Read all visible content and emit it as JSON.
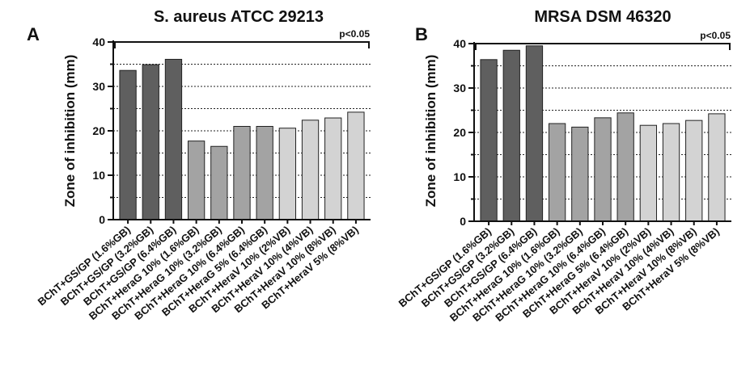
{
  "chart_data": [
    {
      "type": "bar",
      "panel_label": "A",
      "title": "S. aureus ATCC 29213",
      "ylabel": "Zone of inhibition (mm)",
      "xlabel": "",
      "ylim": [
        0,
        40
      ],
      "yticks": [
        "0",
        "10",
        "20",
        "30",
        "40"
      ],
      "grid": "dotted horizontal",
      "significance": "p<0.05",
      "categories": [
        "BChT+GS/GP (1.6%GB)",
        "BChT+GS/GP (3.2%GB)",
        "BChT+GS/GP (6.4%GB)",
        "BChT+HeraG 10% (1.6%GB)",
        "BChT+HeraG 10% (3.2%GB)",
        "BChT+HeraG 10% (6.4%GB)",
        "BChT+HeraG 5% (6.4%GB)",
        "BChT+HeraV 10% (2%VB)",
        "BChT+HeraV 10% (4%VB)",
        "BChT+HeraV 10% (8%VB)",
        "BChT+HeraV 5% (8%VB)"
      ],
      "values": [
        33.6,
        34.9,
        36.1,
        17.7,
        16.5,
        21.0,
        21.0,
        20.6,
        22.4,
        22.9,
        24.2
      ],
      "colors": [
        "#5f5f5f",
        "#5f5f5f",
        "#5f5f5f",
        "#a3a3a3",
        "#a3a3a3",
        "#a3a3a3",
        "#a3a3a3",
        "#d3d3d3",
        "#d3d3d3",
        "#d3d3d3",
        "#d3d3d3"
      ]
    },
    {
      "type": "bar",
      "panel_label": "B",
      "title": "MRSA DSM 46320",
      "ylabel": "Zone of inhibition (mm)",
      "xlabel": "",
      "ylim": [
        0,
        40
      ],
      "yticks": [
        "0",
        "10",
        "20",
        "30",
        "40"
      ],
      "grid": "dotted horizontal",
      "significance": "p<0.05",
      "categories": [
        "BChT+GS/GP (1.6%GB)",
        "BChT+GS/GP (3.2%GB)",
        "BChT+GS/GP (6.4%GB)",
        "BChT+HeraG 10% (1.6%GB)",
        "BChT+HeraG 10% (3.2%GB)",
        "BChT+HeraG 10% (6.4%GB)",
        "BChT+HeraG 5% (6.4%GB)",
        "BChT+HeraV 10% (2%VB)",
        "BChT+HeraV 10% (4%VB)",
        "BChT+HeraV 10% (8%VB)",
        "BChT+HeraV 5% (8%VB)"
      ],
      "values": [
        36.4,
        38.5,
        39.5,
        22.0,
        21.2,
        23.3,
        24.4,
        21.6,
        22.0,
        22.7,
        24.2
      ],
      "colors": [
        "#5f5f5f",
        "#5f5f5f",
        "#5f5f5f",
        "#a3a3a3",
        "#a3a3a3",
        "#a3a3a3",
        "#a3a3a3",
        "#d3d3d3",
        "#d3d3d3",
        "#d3d3d3",
        "#d3d3d3"
      ]
    }
  ]
}
